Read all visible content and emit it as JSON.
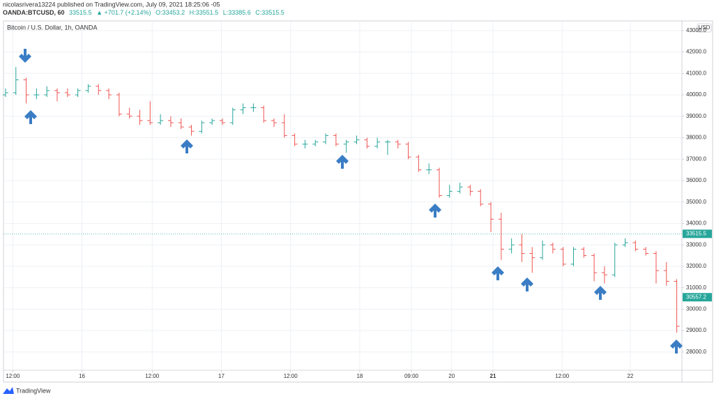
{
  "header": {
    "author_line": "nicolasrivera13224 published on TradingView.com, July 09, 2021 18:25:06 -05",
    "symbol": "OANDA:BTCUSD, 60",
    "last": "33515.5",
    "change": "▲ +701.7 (+2.14%)",
    "open": "O:33453.2",
    "high": "H:33551.5",
    "low": "L:33385.6",
    "close": "C:33515.5"
  },
  "footer": {
    "brand": "TradingView"
  },
  "chart_data": {
    "type": "ohlc",
    "title": "Bitcoin / U.S. Dollar, 1h, OANDA",
    "currency": "USD",
    "up_color": "#26a69a",
    "down_color": "#ef5350",
    "grid": true,
    "open": [
      40000,
      40100,
      40700,
      40000,
      40000,
      40200,
      40100,
      40000,
      40200,
      40400,
      40200,
      40000,
      39100,
      39000,
      38800,
      38700,
      38800,
      38700,
      38500,
      38300,
      38700,
      38800,
      38700,
      39300,
      39400,
      39400,
      38800,
      38700,
      38100,
      37700,
      37700,
      37800,
      38100,
      37700,
      37800,
      37900,
      37600,
      37800,
      37800,
      37700,
      37100,
      36500,
      36500,
      35300,
      35500,
      35700,
      35500,
      34900,
      34200,
      32800,
      33000,
      32600,
      32400,
      33000,
      32800,
      32100,
      32800,
      32500,
      31700,
      31600,
      33000,
      33100,
      32800,
      32600,
      31800,
      31300
    ],
    "high": [
      40300,
      41300,
      40800,
      40300,
      40400,
      40300,
      40300,
      40300,
      40500,
      40500,
      40300,
      40100,
      39400,
      39300,
      39700,
      39100,
      39000,
      38900,
      38600,
      38800,
      38900,
      38900,
      39400,
      39600,
      39600,
      39500,
      38900,
      39100,
      38200,
      37900,
      37900,
      38200,
      38200,
      37900,
      38100,
      38000,
      38000,
      37900,
      37900,
      37800,
      37200,
      36800,
      36600,
      35800,
      35900,
      35800,
      35600,
      35000,
      34500,
      33300,
      33500,
      32900,
      33200,
      33100,
      32900,
      32900,
      32900,
      32600,
      32000,
      33100,
      33300,
      33200,
      32900,
      32700,
      32200,
      31400
    ],
    "low": [
      39900,
      40000,
      39600,
      39800,
      39900,
      39700,
      39900,
      39900,
      40100,
      40000,
      39800,
      39000,
      38900,
      38600,
      38600,
      38600,
      38500,
      38400,
      38100,
      38200,
      38600,
      38600,
      38600,
      39100,
      39200,
      38700,
      38500,
      38000,
      37600,
      37500,
      37600,
      37700,
      37600,
      37300,
      37700,
      37500,
      37500,
      37200,
      37500,
      37000,
      36400,
      36300,
      35200,
      35200,
      35400,
      35300,
      34800,
      33600,
      32300,
      32600,
      32200,
      31700,
      32300,
      32600,
      32000,
      32000,
      32400,
      31300,
      31200,
      31500,
      32900,
      32700,
      32500,
      31200,
      31100,
      28900
    ],
    "close": [
      40100,
      40700,
      40000,
      40000,
      40200,
      40100,
      40000,
      40200,
      40400,
      40200,
      40000,
      39100,
      39000,
      38800,
      38700,
      38800,
      38700,
      38500,
      38300,
      38700,
      38800,
      38700,
      39300,
      39400,
      39400,
      38800,
      38700,
      38100,
      37700,
      37700,
      37800,
      38100,
      37700,
      37800,
      37900,
      37600,
      37800,
      37800,
      37700,
      37100,
      36500,
      36500,
      35300,
      35500,
      35700,
      35500,
      34900,
      34200,
      32800,
      33000,
      32600,
      32400,
      33000,
      32800,
      32100,
      32800,
      32500,
      31700,
      31600,
      33000,
      33100,
      32800,
      32600,
      31800,
      31300,
      29200
    ],
    "xlim": [
      -0.2,
      65.5
    ],
    "xticks": [
      {
        "value": 0.7,
        "label": "12:00"
      },
      {
        "value": 7.4,
        "label": "16"
      },
      {
        "value": 14.2,
        "label": "12:00"
      },
      {
        "value": 20.9,
        "label": "17"
      },
      {
        "value": 27.6,
        "label": "12:00"
      },
      {
        "value": 34.3,
        "label": "18"
      },
      {
        "value": 39.3,
        "label": "09:00"
      },
      {
        "value": 43.2,
        "label": "20"
      },
      {
        "value": 47.2,
        "label": "21",
        "bold": true
      },
      {
        "value": 53.9,
        "label": "12:00"
      },
      {
        "value": 60.5,
        "label": "22"
      }
    ],
    "ylim": [
      27150,
      43450
    ],
    "yticks": [
      {
        "value": 28000,
        "label": "28000.0"
      },
      {
        "value": 29000,
        "label": "29000.0"
      },
      {
        "value": 30000,
        "label": "30000.0"
      },
      {
        "value": 31000,
        "label": "31000.0"
      },
      {
        "value": 32000,
        "label": "32000.0"
      },
      {
        "value": 33000,
        "label": "33000.0"
      },
      {
        "value": 34000,
        "label": "34000.0"
      },
      {
        "value": 35000,
        "label": "35000.0"
      },
      {
        "value": 36000,
        "label": "36000.0"
      },
      {
        "value": 37000,
        "label": "37000.0"
      },
      {
        "value": 38000,
        "label": "38000.0"
      },
      {
        "value": 39000,
        "label": "39000.0"
      },
      {
        "value": 40000,
        "label": "40000.0"
      },
      {
        "value": 41000,
        "label": "41000.0"
      },
      {
        "value": 42000,
        "label": "42000.0"
      },
      {
        "value": 43000,
        "label": "43000.0"
      }
    ],
    "last_price": {
      "value": 33515.5,
      "label": "33515.5"
    },
    "marker_price": {
      "value": 30557.2,
      "label": "30557.2"
    }
  }
}
